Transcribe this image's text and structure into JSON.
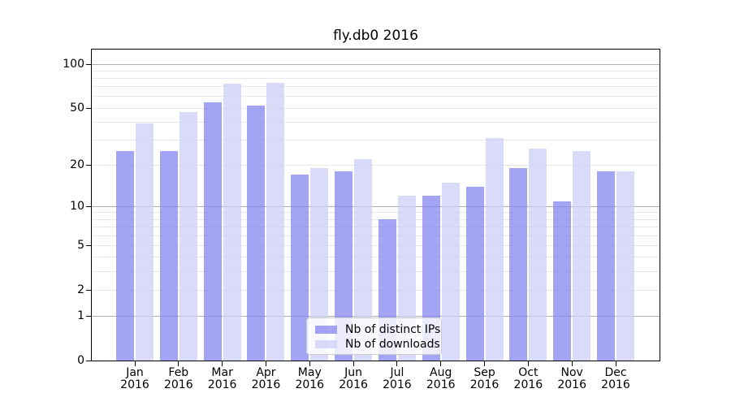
{
  "chart_data": {
    "type": "bar",
    "title": "fly.db0 2016",
    "categories": [
      "Jan 2016",
      "Feb 2016",
      "Mar 2016",
      "Apr 2016",
      "May 2016",
      "Jun 2016",
      "Jul 2016",
      "Aug 2016",
      "Sep 2016",
      "Oct 2016",
      "Nov 2016",
      "Dec 2016"
    ],
    "series": [
      {
        "name": "Nb of distinct IPs",
        "color": "rgba(134,134,240,0.75)",
        "values": [
          25,
          25,
          55,
          52,
          17,
          18,
          8,
          12,
          14,
          19,
          11,
          18
        ]
      },
      {
        "name": "Nb of downloads",
        "color": "rgba(206,206,247,0.75)",
        "values": [
          39,
          47,
          74,
          75,
          19,
          22,
          12,
          15,
          31,
          26,
          25,
          18
        ]
      }
    ],
    "y_axis": {
      "scale": "log1p",
      "tick_labels": [
        "0",
        "1",
        "2",
        "5",
        "10",
        "20",
        "50",
        "100"
      ],
      "tick_values": [
        0,
        1,
        2,
        5,
        10,
        20,
        50,
        100
      ],
      "major_gridlines": [
        1,
        10,
        100
      ],
      "minor_gridlines": [
        2,
        3,
        4,
        5,
        6,
        7,
        8,
        9,
        20,
        30,
        40,
        50,
        60,
        70,
        80,
        90
      ],
      "range": [
        0,
        126
      ]
    },
    "x_axis": {
      "label_year_split": true
    },
    "legend": {
      "position": "lower center"
    },
    "grid": true
  },
  "colors": {
    "background": "#ffffff",
    "spine": "#000000",
    "major_grid": "#b0b0b0",
    "minor_grid": "#e8e8e8",
    "text": "#000000",
    "legend_border": "#cccccc"
  }
}
